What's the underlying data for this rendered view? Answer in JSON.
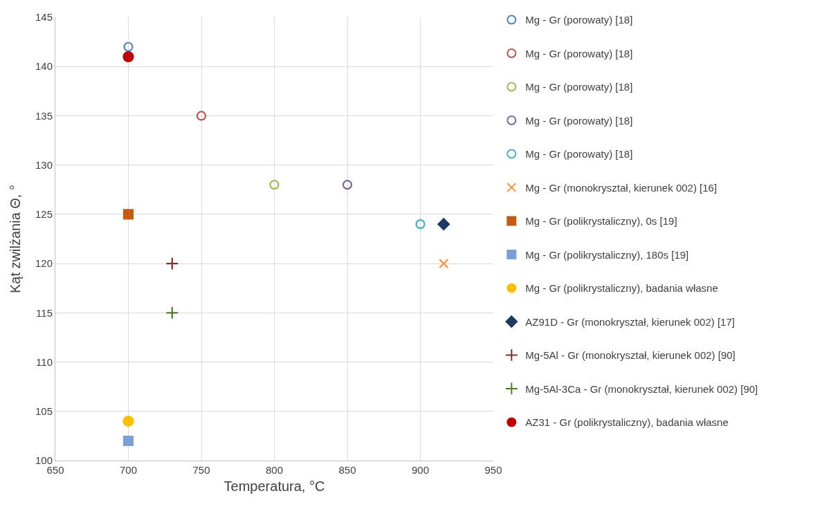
{
  "chart_data": {
    "type": "scatter",
    "xlabel": "Temperatura, °C",
    "ylabel": "Kąt zwilżania Θ, °",
    "xlim": [
      650,
      950
    ],
    "xticks": [
      650,
      700,
      750,
      800,
      850,
      900,
      950
    ],
    "ylim": [
      100,
      145
    ],
    "yticks": [
      100,
      105,
      110,
      115,
      120,
      125,
      130,
      135,
      140,
      145
    ],
    "grid": true,
    "legend": "right",
    "series": [
      {
        "name": "Mg - Gr (porowaty) [18]",
        "color": "#4f81bd",
        "marker": "circle-open",
        "x": [
          700
        ],
        "values": [
          142
        ]
      },
      {
        "name": "Mg - Gr (porowaty) [18]",
        "color": "#c0504d",
        "marker": "circle-open",
        "x": [
          750
        ],
        "values": [
          135
        ]
      },
      {
        "name": "Mg - Gr (porowaty) [18]",
        "color": "#9bbb59",
        "marker": "circle-open",
        "x": [
          800
        ],
        "values": [
          128
        ]
      },
      {
        "name": "Mg - Gr (porowaty) [18]",
        "color": "#8064a2",
        "marker": "circle-open",
        "x": [
          850
        ],
        "values": [
          128
        ]
      },
      {
        "name": "Mg - Gr (porowaty) [18]",
        "color": "#4bacc6",
        "marker": "circle-open",
        "x": [
          900
        ],
        "values": [
          124
        ]
      },
      {
        "name": "Mg - Gr (monokryształ, kierunek 002) [16]",
        "color": "#f79646",
        "marker": "x",
        "x": [
          916
        ],
        "values": [
          120
        ]
      },
      {
        "name": "Mg - Gr (polikrystaliczny), 0s [19]",
        "color": "#c55a11",
        "marker": "square",
        "x": [
          700
        ],
        "values": [
          125
        ]
      },
      {
        "name": "Mg - Gr (polikrystaliczny), 180s [19]",
        "color": "#7ba0d4",
        "marker": "square",
        "x": [
          700
        ],
        "values": [
          102
        ]
      },
      {
        "name": "Mg - Gr (polikrystaliczny), badania własne",
        "color": "#ffc000",
        "marker": "circle",
        "x": [
          700
        ],
        "values": [
          104
        ]
      },
      {
        "name": "AZ91D - Gr (monokryształ, kierunek 002) [17]",
        "color": "#1f3864",
        "marker": "diamond",
        "x": [
          916
        ],
        "values": [
          124
        ]
      },
      {
        "name": "Mg-5Al - Gr (monokryształ, kierunek 002) [90]",
        "color": "#8b2a2a",
        "marker": "cross",
        "x": [
          730
        ],
        "values": [
          120
        ]
      },
      {
        "name": "Mg-5Al-3Ca - Gr (monokryształ, kierunek 002) [90]",
        "color": "#4f7a28",
        "marker": "cross",
        "x": [
          730
        ],
        "values": [
          115
        ]
      },
      {
        "name": "AZ31 - Gr (polikrystaliczny), badania własne",
        "color": "#c00000",
        "marker": "circle",
        "x": [
          700
        ],
        "values": [
          141
        ]
      }
    ]
  }
}
